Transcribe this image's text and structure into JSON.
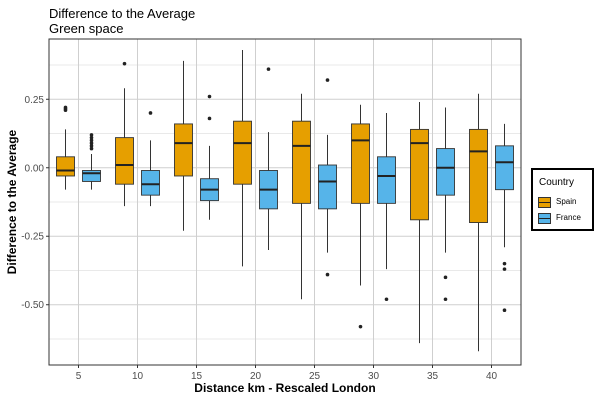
{
  "chart_data": {
    "type": "boxplot",
    "title": "Difference to the Average",
    "subtitle": "Green space",
    "xlabel": "Distance km - Rescaled London",
    "ylabel": "Difference to the Average",
    "categories": [
      "5",
      "10",
      "15",
      "20",
      "25",
      "30",
      "35",
      "40"
    ],
    "ylim": [
      -0.72,
      0.47
    ],
    "yticks": [
      -0.5,
      -0.25,
      0.0,
      0.25
    ],
    "ytick_labels": [
      "-0.50",
      "-0.25",
      "0.00",
      "0.25"
    ],
    "grid": true,
    "legend": {
      "title": "Country",
      "position": "right"
    },
    "series": [
      {
        "name": "Spain",
        "color": "#E69F00",
        "boxes": [
          {
            "lower": -0.08,
            "q1": -0.03,
            "median": -0.01,
            "q3": 0.04,
            "upper": 0.14,
            "outliers": [
              0.21,
              0.215,
              0.22
            ]
          },
          {
            "lower": -0.14,
            "q1": -0.06,
            "median": 0.01,
            "q3": 0.11,
            "upper": 0.29,
            "outliers": [
              0.38
            ]
          },
          {
            "lower": -0.23,
            "q1": -0.03,
            "median": 0.09,
            "q3": 0.16,
            "upper": 0.39,
            "outliers": []
          },
          {
            "lower": -0.36,
            "q1": -0.06,
            "median": 0.09,
            "q3": 0.17,
            "upper": 0.43,
            "outliers": []
          },
          {
            "lower": -0.48,
            "q1": -0.13,
            "median": 0.08,
            "q3": 0.17,
            "upper": 0.27,
            "outliers": []
          },
          {
            "lower": -0.43,
            "q1": -0.13,
            "median": 0.1,
            "q3": 0.16,
            "upper": 0.23,
            "outliers": [
              -0.58
            ]
          },
          {
            "lower": -0.64,
            "q1": -0.19,
            "median": 0.09,
            "q3": 0.14,
            "upper": 0.24,
            "outliers": []
          },
          {
            "lower": -0.67,
            "q1": -0.2,
            "median": 0.06,
            "q3": 0.14,
            "upper": 0.27,
            "outliers": []
          }
        ]
      },
      {
        "name": "France",
        "color": "#56B4E9",
        "boxes": [
          {
            "lower": -0.08,
            "q1": -0.05,
            "median": -0.02,
            "q3": -0.01,
            "upper": 0.05,
            "outliers": [
              0.07,
              0.08,
              0.09,
              0.1,
              0.11,
              0.12
            ]
          },
          {
            "lower": -0.14,
            "q1": -0.1,
            "median": -0.06,
            "q3": -0.01,
            "upper": 0.1,
            "outliers": [
              0.2
            ]
          },
          {
            "lower": -0.19,
            "q1": -0.12,
            "median": -0.08,
            "q3": -0.04,
            "upper": 0.08,
            "outliers": [
              0.18,
              0.26
            ]
          },
          {
            "lower": -0.3,
            "q1": -0.15,
            "median": -0.08,
            "q3": -0.01,
            "upper": 0.13,
            "outliers": [
              0.36
            ]
          },
          {
            "lower": -0.31,
            "q1": -0.15,
            "median": -0.05,
            "q3": 0.01,
            "upper": 0.12,
            "outliers": [
              -0.39,
              0.32
            ]
          },
          {
            "lower": -0.37,
            "q1": -0.13,
            "median": -0.03,
            "q3": 0.04,
            "upper": 0.2,
            "outliers": [
              -0.48
            ]
          },
          {
            "lower": -0.31,
            "q1": -0.1,
            "median": 0.0,
            "q3": 0.07,
            "upper": 0.22,
            "outliers": [
              -0.4,
              -0.48
            ]
          },
          {
            "lower": -0.29,
            "q1": -0.08,
            "median": 0.02,
            "q3": 0.08,
            "upper": 0.16,
            "outliers": [
              -0.35,
              -0.37,
              -0.52
            ]
          }
        ]
      }
    ]
  }
}
